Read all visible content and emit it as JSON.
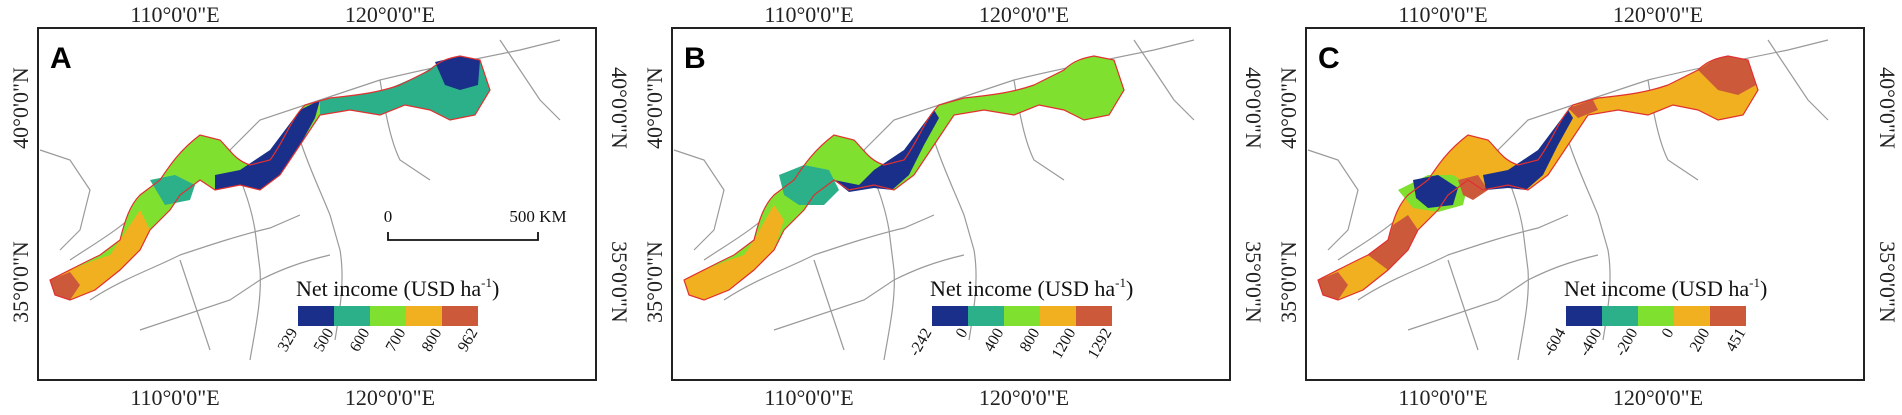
{
  "coord_labels": {
    "lon_110": "110°0'0\"E",
    "lon_120": "120°0'0\"E",
    "lat_40": "40°0'0\"N",
    "lat_35": "35°0'0\"N"
  },
  "panels": [
    {
      "letter": "A",
      "legend": {
        "title": "Net income (USD ha",
        "title_sup": "-1",
        "title_close": ")",
        "breaks": [
          "329",
          "500",
          "600",
          "700",
          "800",
          "962"
        ],
        "colors": [
          "#1a2f8a",
          "#2bb08a",
          "#80e030",
          "#f0b020",
          "#cc5a3a"
        ]
      },
      "scale_bar": {
        "start": "0",
        "end": "500 KM"
      }
    },
    {
      "letter": "B",
      "legend": {
        "title": "Net income (USD ha",
        "title_sup": "-1",
        "title_close": ")",
        "breaks": [
          "-242",
          "0",
          "400",
          "800",
          "1200",
          "1292"
        ],
        "colors": [
          "#1a2f8a",
          "#2bb08a",
          "#80e030",
          "#f0b020",
          "#cc5a3a"
        ]
      }
    },
    {
      "letter": "C",
      "legend": {
        "title": "Net income (USD ha",
        "title_sup": "-1",
        "title_close": ")",
        "breaks": [
          "-604",
          "-400",
          "-200",
          "0",
          "200",
          "451"
        ],
        "colors": [
          "#1a2f8a",
          "#2bb08a",
          "#80e030",
          "#f0b020",
          "#cc5a3a"
        ]
      }
    }
  ]
}
